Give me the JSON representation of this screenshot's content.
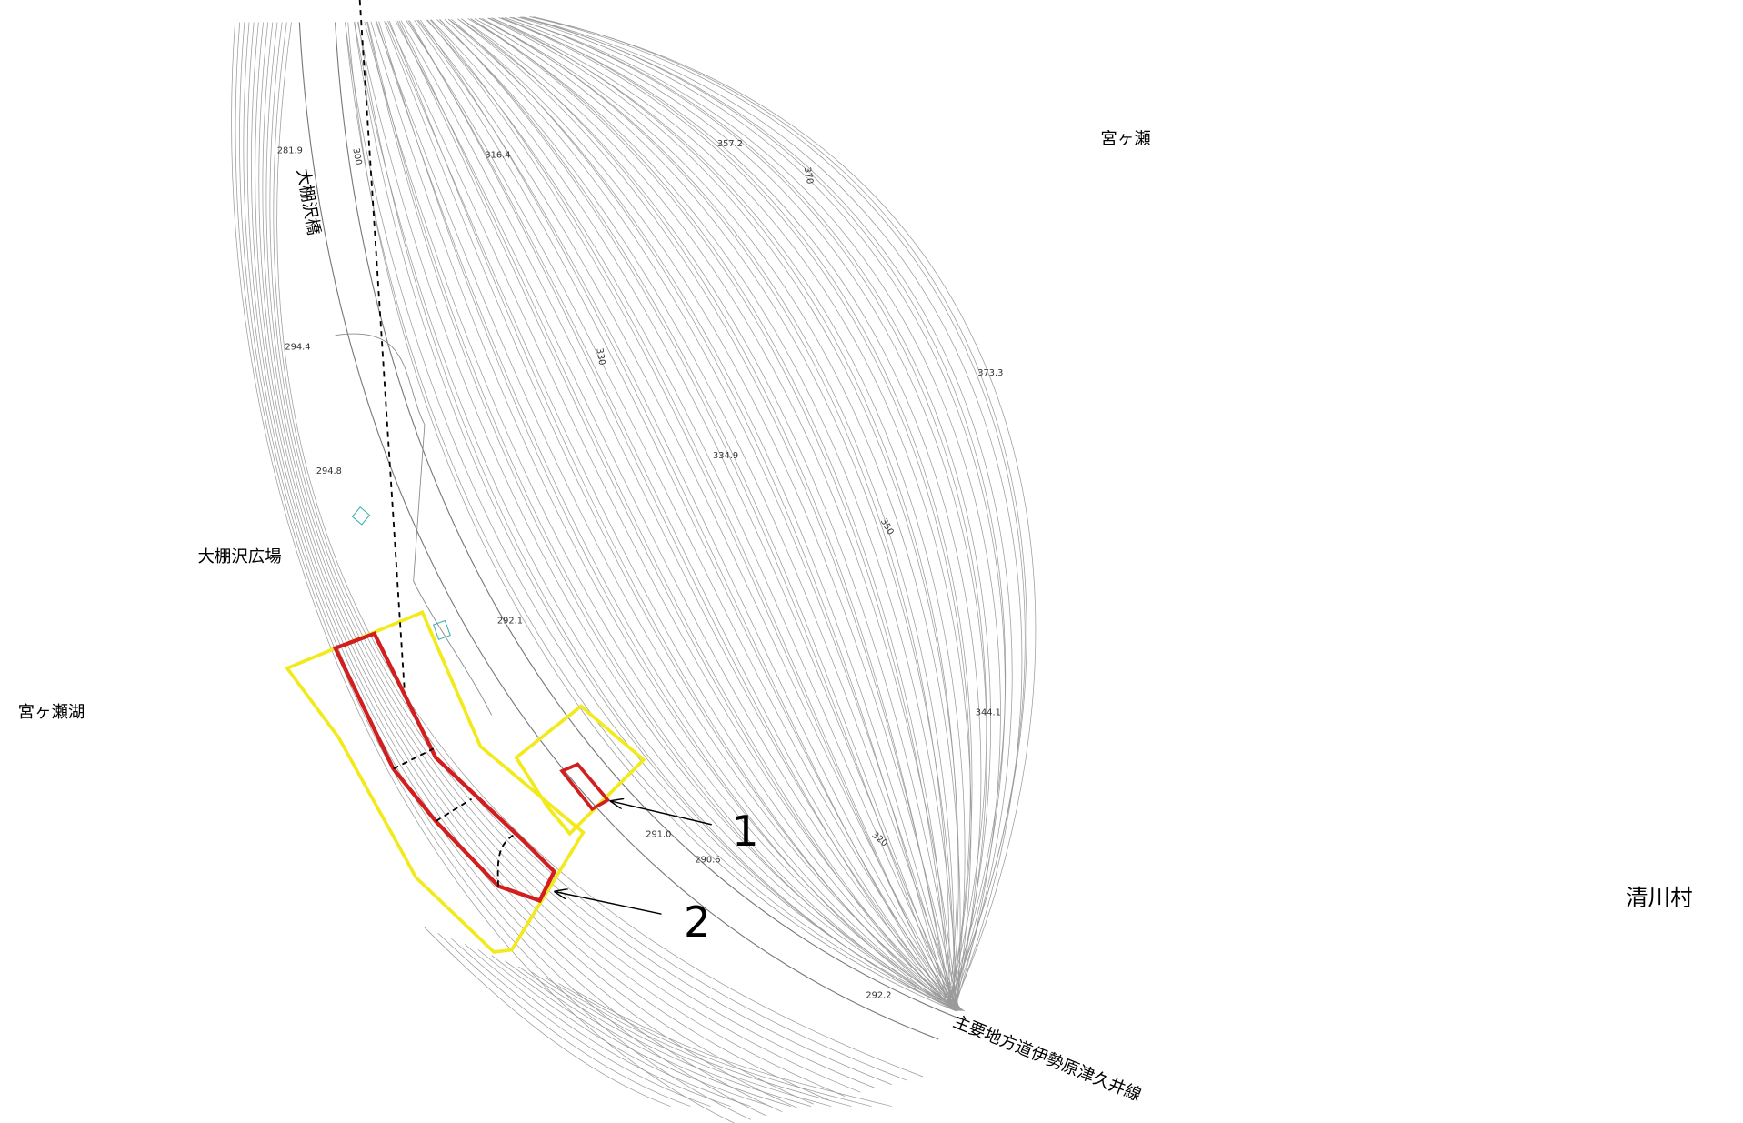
{
  "places": {
    "miyagase": "宮ヶ瀬",
    "lake": "宮ヶ瀬湖",
    "village": "清川村",
    "bridge": "大棚沢橋",
    "plaza": "大棚沢広場",
    "road": "主要地方道伊勢原津久井線"
  },
  "elevations": [
    "281.9",
    "300",
    "316.4",
    "357.2",
    "370",
    "294.4",
    "330",
    "373.3",
    "334.9",
    "294.8",
    "350",
    "292.1",
    "344.1",
    "291.0",
    "290.6",
    "320",
    "292.2"
  ],
  "markers": [
    "1",
    "2"
  ]
}
